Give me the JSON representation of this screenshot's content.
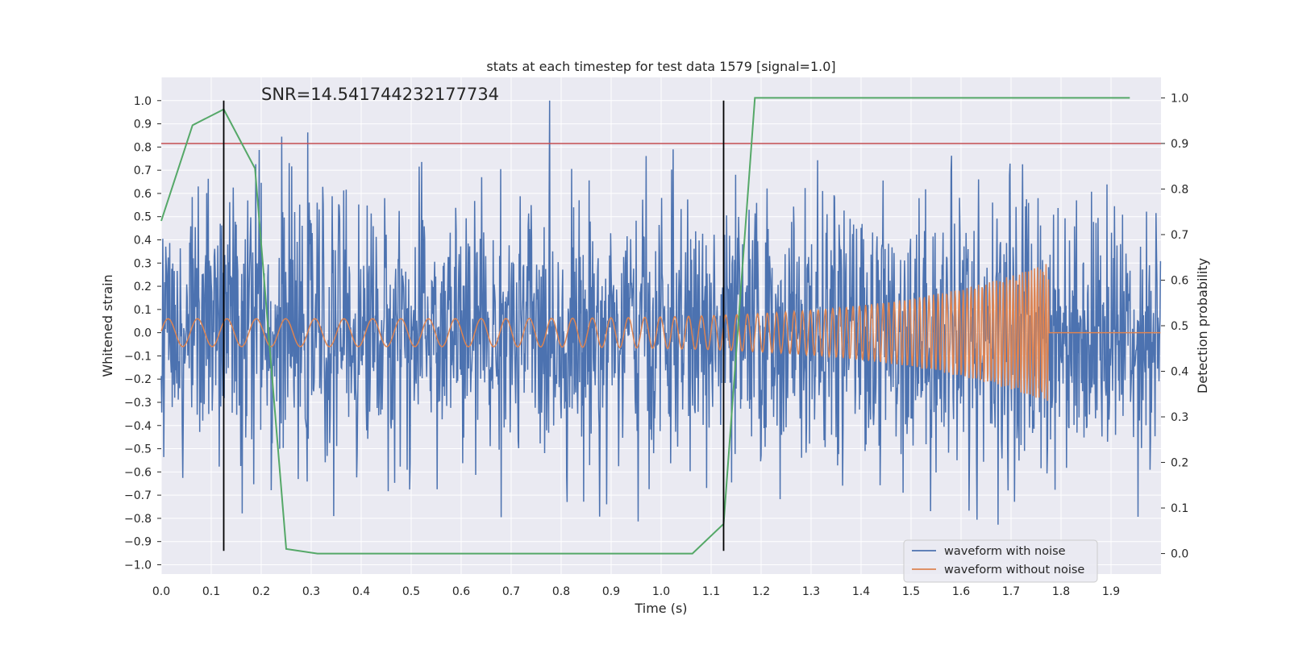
{
  "chart_data": {
    "type": "line",
    "title": "stats at each timestep for test data 1579 [signal=1.0]",
    "annotation": "SNR=14.541744232177734",
    "xlabel": "Time (s)",
    "ylabel_left": "Whitened strain",
    "ylabel_right": "Detection probability",
    "xlim": [
      0.0,
      2.0
    ],
    "ylim_left": [
      -1.04,
      1.1
    ],
    "ylim_right": [
      -0.045,
      1.045
    ],
    "x_ticks": [
      "0.0",
      "0.1",
      "0.2",
      "0.3",
      "0.4",
      "0.5",
      "0.6",
      "0.7",
      "0.8",
      "0.9",
      "1.0",
      "1.1",
      "1.2",
      "1.3",
      "1.4",
      "1.5",
      "1.6",
      "1.7",
      "1.8",
      "1.9"
    ],
    "y_left_ticks": [
      "1.0",
      "0.9",
      "0.8",
      "0.7",
      "0.6",
      "0.5",
      "0.4",
      "0.3",
      "0.2",
      "0.1",
      "0.0",
      "−0.1",
      "−0.2",
      "−0.3",
      "−0.4",
      "−0.5",
      "−0.6",
      "−0.7",
      "−0.8",
      "−0.9",
      "−1.0"
    ],
    "y_right_ticks": [
      "1.0",
      "0.9",
      "0.8",
      "0.7",
      "0.6",
      "0.5",
      "0.4",
      "0.3",
      "0.2",
      "0.1",
      "0.0"
    ],
    "threshold_right": 0.9,
    "vertical_markers_x": [
      0.125,
      1.125
    ],
    "vertical_markers_ylim": [
      -0.94,
      1.0
    ],
    "detection_probability": {
      "x": [
        0.0,
        0.0625,
        0.125,
        0.1875,
        0.25,
        0.3125,
        1.0625,
        1.125,
        1.1875,
        1.25,
        1.9375
      ],
      "y": [
        0.73,
        0.94,
        0.975,
        0.845,
        0.01,
        0.0,
        0.0,
        0.065,
        1.0,
        1.0,
        1.0
      ]
    },
    "series": [
      {
        "name": "waveform with noise",
        "color": "#4c72b0",
        "std": 0.27,
        "seed": 1579
      },
      {
        "name": "waveform without noise",
        "color": "#dd8452",
        "amp_start": 0.06,
        "amp_peak": 0.3,
        "merger_x": 1.775,
        "f_start": 17,
        "f_end": 180
      }
    ],
    "colors": {
      "plot_bg": "#eaeaf2",
      "grid": "#ffffff",
      "noise": "#4c72b0",
      "clean": "#dd8452",
      "probability": "#55a868",
      "threshold": "#c44e52",
      "marker": "#000000"
    },
    "legend": [
      "waveform with noise",
      "waveform without noise"
    ],
    "legend_position": "lower right"
  }
}
